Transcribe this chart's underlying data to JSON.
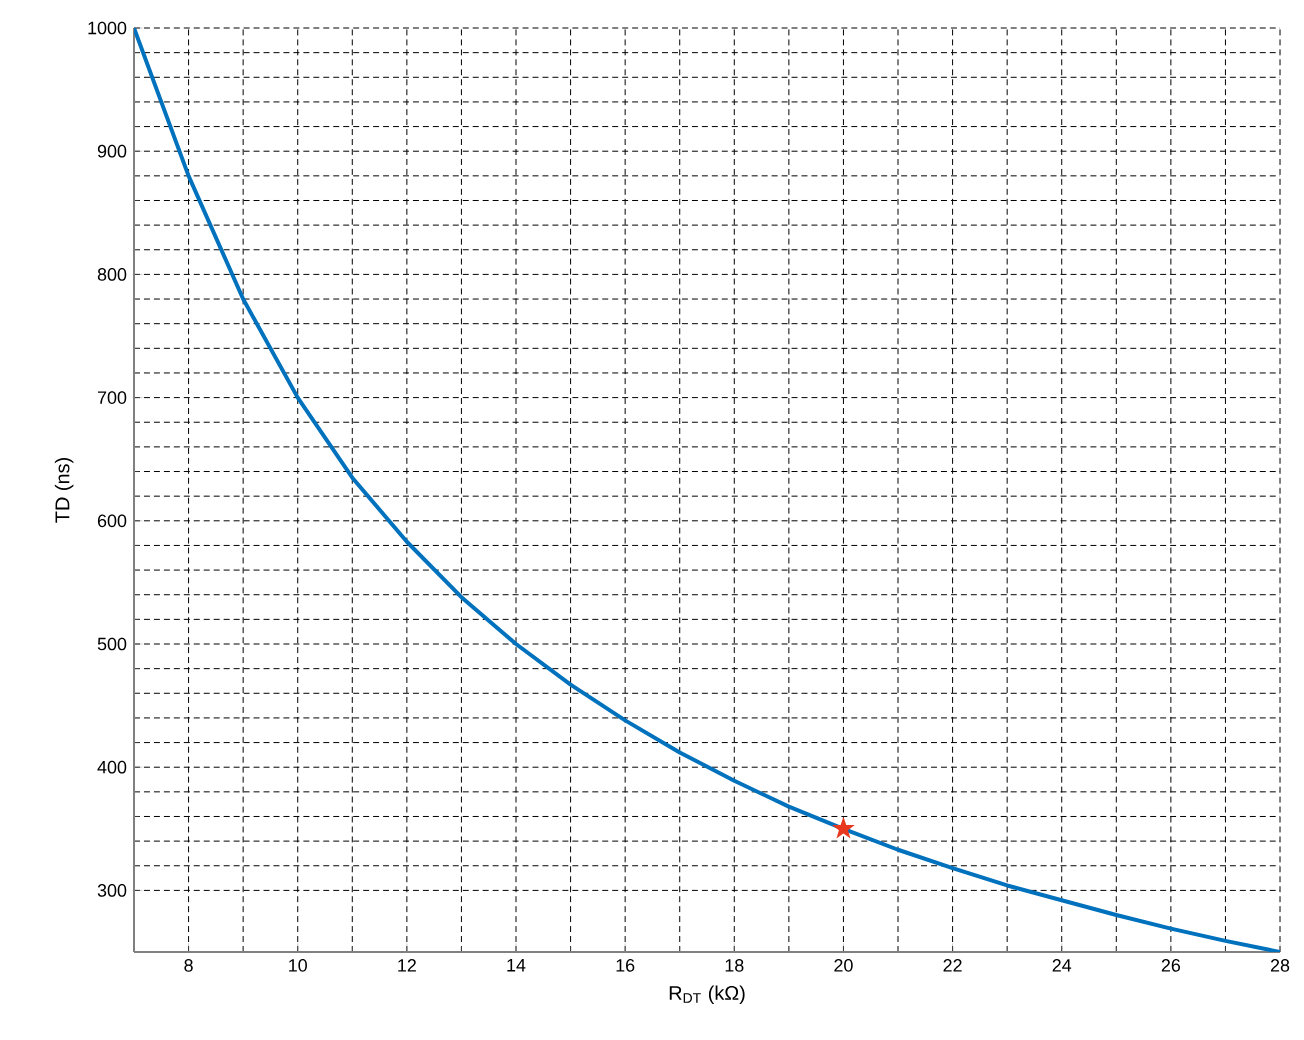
{
  "chart_data": {
    "type": "line",
    "xlabel": "R$_{DT}$ (kΩ)",
    "ylabel": "TD (ns)",
    "xlim": [
      7,
      28
    ],
    "ylim": [
      250,
      1000
    ],
    "xticks": [
      8,
      10,
      12,
      14,
      16,
      18,
      20,
      22,
      24,
      26,
      28
    ],
    "yticks": [
      300,
      400,
      500,
      600,
      700,
      800,
      900,
      1000
    ],
    "grid": true,
    "series": [
      {
        "color": "#0072bd",
        "x": [
          7,
          8,
          9,
          10,
          11,
          12,
          13,
          14,
          15,
          16,
          17,
          18,
          19,
          20,
          21,
          22,
          23,
          24,
          25,
          26,
          27,
          28
        ],
        "values": [
          1000,
          880,
          780,
          700,
          635,
          583,
          538,
          500,
          467,
          438,
          412,
          389,
          368,
          350,
          333,
          318,
          304,
          292,
          280,
          269,
          259,
          250
        ],
        "marker": "none",
        "line_style": "solid"
      },
      {
        "type": "scatter",
        "color": "#e8391e",
        "x": [
          20
        ],
        "values": [
          350
        ],
        "marker": "star"
      }
    ]
  }
}
